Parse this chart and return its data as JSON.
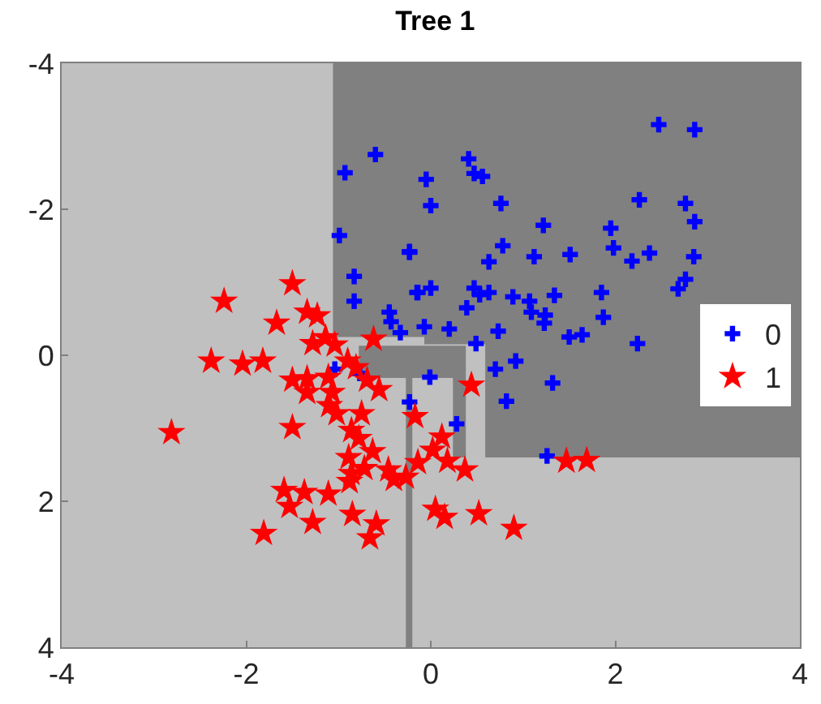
{
  "chart_data": {
    "type": "scatter",
    "title": "Tree 1",
    "xlim": [
      -4,
      4
    ],
    "ylim": [
      4,
      -4
    ],
    "xticks": [
      -4,
      -2,
      0,
      2,
      4
    ],
    "yticks": [
      -4,
      -2,
      0,
      2,
      4
    ],
    "grid": false,
    "legend": "right",
    "series": [
      {
        "type": "area",
        "color": "#808080",
        "x": [
          -1.06,
          4,
          4,
          -1.06,
          -1.06,
          null,
          -0.07,
          4,
          4,
          -0.07,
          -0.07,
          null,
          -0.78,
          0.38,
          0.38,
          -0.78,
          -0.78,
          null,
          0.24,
          0.38,
          0.38,
          0.24,
          0.24,
          null,
          0.59,
          4,
          4,
          0.59,
          0.59,
          null,
          -0.27,
          -0.2,
          -0.2,
          -0.27,
          -0.27
        ],
        "values": [
          -4,
          -4,
          -0.25,
          -0.25,
          -4,
          null,
          -0.25,
          -0.25,
          -0.15,
          -0.15,
          -0.25,
          null,
          -0.13,
          -0.13,
          0.31,
          0.31,
          -0.13,
          null,
          0.31,
          0.31,
          1.4,
          1.4,
          0.31,
          null,
          -0.15,
          -0.15,
          1.4,
          1.4,
          -0.15,
          null,
          0.31,
          0.31,
          4,
          4,
          0.31
        ]
      },
      {
        "name": "0",
        "color": "#0000ff",
        "marker": "cross",
        "x": [
          0.41,
          0.47,
          0.56,
          -0.05,
          0.0,
          0.76,
          1.22,
          1.95,
          2.26,
          2.76,
          2.47,
          2.86,
          2.86,
          -0.23,
          0.78,
          0.63,
          1.12,
          1.51,
          1.98,
          2.18,
          2.37,
          2.85,
          2.76,
          2.68,
          1.85,
          1.34,
          0.89,
          1.07,
          1.09,
          1.24,
          1.23,
          1.87,
          0.39,
          0.47,
          -0.14,
          0.0,
          0.53,
          0.63,
          -0.07,
          0.2,
          0.73,
          1.5,
          1.64,
          2.24,
          0.49,
          0.92,
          0.7,
          -0.6,
          -0.93,
          -0.99,
          -0.23,
          -0.83,
          -0.83,
          -0.15,
          -0.45,
          -0.43,
          -0.33,
          -1.04,
          -0.77,
          -0.23,
          -0.01,
          0.28,
          0.82,
          1.32,
          1.26
        ],
        "values": [
          -2.69,
          -2.49,
          -2.45,
          -2.41,
          -2.05,
          -2.08,
          -1.78,
          -1.74,
          -2.13,
          -2.08,
          -3.16,
          -3.09,
          -1.83,
          -1.41,
          -1.5,
          -1.28,
          -1.35,
          -1.38,
          -1.47,
          -1.29,
          -1.4,
          -1.35,
          -1.04,
          -0.91,
          -0.86,
          -0.82,
          -0.8,
          -0.74,
          -0.59,
          -0.55,
          -0.44,
          -0.52,
          -0.65,
          -0.92,
          -0.86,
          -0.92,
          -0.83,
          -0.86,
          -0.39,
          -0.36,
          -0.33,
          -0.25,
          -0.28,
          -0.16,
          -0.16,
          0.08,
          0.19,
          -2.75,
          -2.5,
          -1.64,
          -1.42,
          -1.08,
          -0.74,
          -0.86,
          -0.59,
          -0.46,
          -0.31,
          0.19,
          0.25,
          0.64,
          0.3,
          0.94,
          0.63,
          0.38,
          1.38
        ]
      },
      {
        "name": "1",
        "color": "#ff0000",
        "marker": "star",
        "x": [
          -2.24,
          -1.5,
          -1.67,
          -1.34,
          -1.23,
          -1.28,
          -1.14,
          -1.04,
          -0.62,
          -2.38,
          -2.04,
          -1.82,
          -2.81,
          -1.5,
          -1.34,
          -1.34,
          -1.5,
          -1.11,
          -1.07,
          -1.1,
          -1.02,
          -0.9,
          -0.81,
          -0.69,
          -0.56,
          -0.75,
          -0.86,
          -0.78,
          -0.89,
          -0.63,
          -0.72,
          -0.86,
          -0.88,
          -0.46,
          -0.4,
          -0.27,
          -1.59,
          -1.53,
          -1.37,
          -1.11,
          -1.28,
          -1.81,
          -0.85,
          -0.59,
          -0.66,
          -0.17,
          0.44,
          0.12,
          0.02,
          0.18,
          0.37,
          -0.14,
          1.47,
          1.69,
          0.05,
          0.15,
          0.52,
          0.9
        ],
        "values": [
          -0.74,
          -0.98,
          -0.44,
          -0.59,
          -0.54,
          -0.16,
          -0.24,
          -0.14,
          -0.22,
          0.08,
          0.12,
          0.08,
          1.06,
          0.34,
          0.32,
          0.51,
          0.99,
          0.3,
          0.51,
          0.69,
          0.8,
          0.08,
          0.17,
          0.34,
          0.47,
          0.8,
          1.03,
          1.14,
          1.4,
          1.32,
          1.55,
          1.62,
          1.73,
          1.57,
          1.7,
          1.67,
          1.85,
          2.07,
          1.88,
          1.9,
          2.29,
          2.44,
          2.18,
          2.31,
          2.5,
          0.84,
          0.41,
          1.12,
          1.3,
          1.45,
          1.57,
          1.47,
          1.45,
          1.44,
          2.11,
          2.22,
          2.17,
          2.37
        ]
      }
    ]
  }
}
